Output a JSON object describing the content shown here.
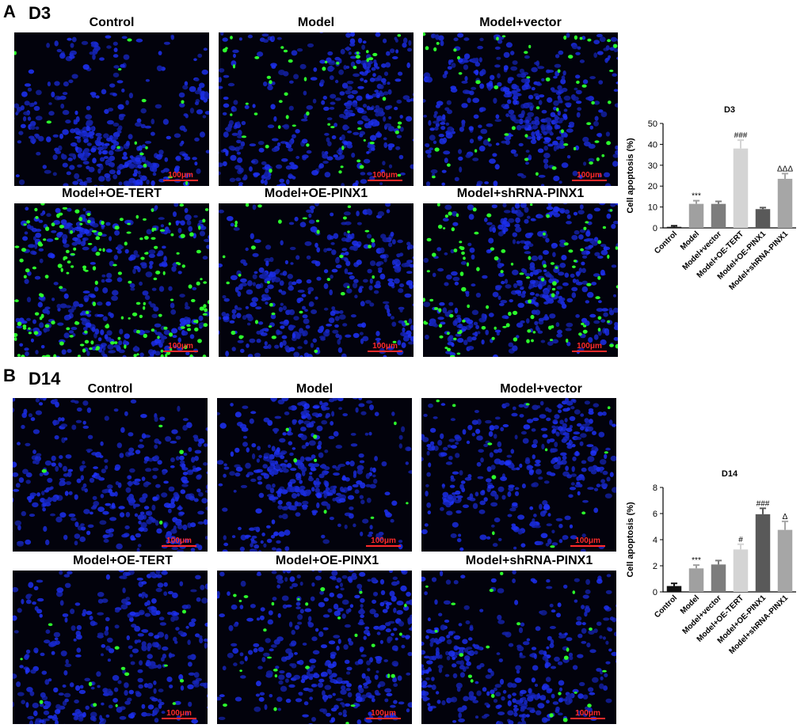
{
  "panels": [
    {
      "letter": "A",
      "day": "D3",
      "images": [
        {
          "title": "Control",
          "scale_label": "100μm",
          "green_density": 0.03
        },
        {
          "title": "Model",
          "scale_label": "100μm",
          "green_density": 0.12
        },
        {
          "title": "Model+vector",
          "scale_label": "100μm",
          "green_density": 0.12
        },
        {
          "title": "Model+OE-TERT",
          "scale_label": "100μm",
          "green_density": 0.42
        },
        {
          "title": "Model+OE-PINX1",
          "scale_label": "100μm",
          "green_density": 0.09
        },
        {
          "title": "Model+shRNA-PINX1",
          "scale_label": "100μm",
          "green_density": 0.25
        }
      ]
    },
    {
      "letter": "B",
      "day": "D14",
      "images": [
        {
          "title": "Control",
          "scale_label": "100μm",
          "green_density": 0.01
        },
        {
          "title": "Model",
          "scale_label": "100μm",
          "green_density": 0.02
        },
        {
          "title": "Model+vector",
          "scale_label": "100μm",
          "green_density": 0.025
        },
        {
          "title": "Model+OE-TERT",
          "scale_label": "100μm",
          "green_density": 0.03
        },
        {
          "title": "Model+OE-PINX1",
          "scale_label": "100μm",
          "green_density": 0.06
        },
        {
          "title": "Model+shRNA-PINX1",
          "scale_label": "100μm",
          "green_density": 0.05
        }
      ]
    }
  ],
  "colors": {
    "nuclei": "#1d2fe0",
    "apoptotic": "#2cff2c",
    "scale_bar": "#ff2a2a",
    "background": "#02020c"
  },
  "chart_data": [
    {
      "type": "bar",
      "title": "D3",
      "ylabel": "Cell apoptosis (%)",
      "xlabel": "",
      "ylim": [
        0,
        50
      ],
      "yticks": [
        0,
        10,
        20,
        30,
        40,
        50
      ],
      "categories": [
        "Control",
        "Model",
        "Model+vector",
        "Model+OE-TERT",
        "Model+OE-PINX1",
        "Model+shRNA-PINX1"
      ],
      "values": [
        0.5,
        11.5,
        11.5,
        38,
        9,
        23.5
      ],
      "errors": [
        0.5,
        1.5,
        1.2,
        4,
        0.7,
        2.5
      ],
      "bar_colors": [
        "#111111",
        "#a0a0a0",
        "#7d7d7d",
        "#d4d4d4",
        "#595959",
        "#a6a6a6"
      ],
      "annotations": [
        "",
        "***",
        "",
        "###",
        "",
        "ΔΔΔ"
      ],
      "grid": false
    },
    {
      "type": "bar",
      "title": "D14",
      "ylabel": "Cell apoptosis (%)",
      "xlabel": "",
      "ylim": [
        0,
        8
      ],
      "yticks": [
        0,
        2,
        4,
        6,
        8
      ],
      "categories": [
        "Control",
        "Model",
        "Model+vector",
        "Model+OE-TERT",
        "Model+OE-PINX1",
        "Model+shRNA-PINX1"
      ],
      "values": [
        0.45,
        1.8,
        2.1,
        3.25,
        5.95,
        4.75
      ],
      "errors": [
        0.2,
        0.25,
        0.3,
        0.4,
        0.45,
        0.65
      ],
      "bar_colors": [
        "#111111",
        "#a0a0a0",
        "#7d7d7d",
        "#d4d4d4",
        "#595959",
        "#a6a6a6"
      ],
      "annotations": [
        "",
        "***",
        "",
        "#",
        "###",
        "Δ"
      ],
      "grid": false
    }
  ]
}
